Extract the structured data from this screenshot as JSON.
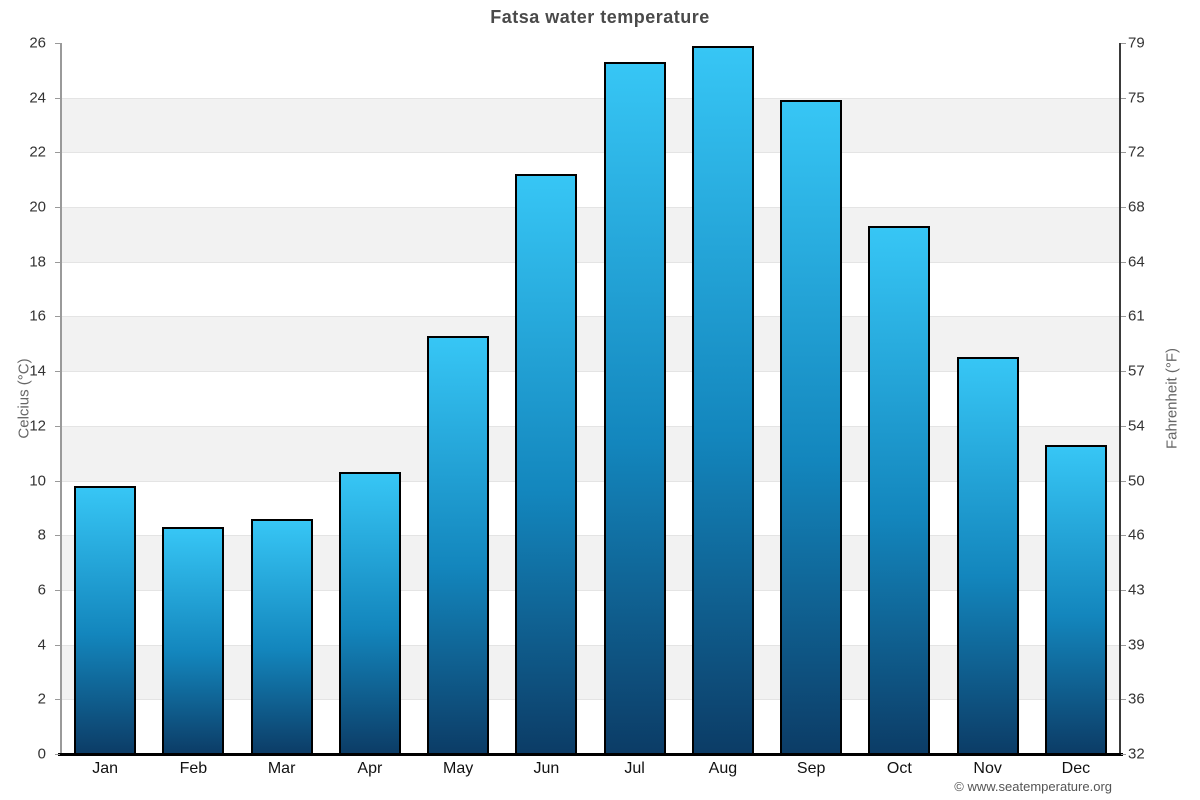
{
  "chart_data": {
    "type": "bar",
    "title": "Fatsa water temperature",
    "categories": [
      "Jan",
      "Feb",
      "Mar",
      "Apr",
      "May",
      "Jun",
      "Jul",
      "Aug",
      "Sep",
      "Oct",
      "Nov",
      "Dec"
    ],
    "values": [
      9.8,
      8.3,
      8.6,
      10.3,
      15.3,
      21.2,
      25.3,
      25.9,
      23.9,
      19.3,
      14.5,
      11.3
    ],
    "xlabel": "",
    "ylabel_left": "Celcius (°C)",
    "ylabel_right": "Fahrenheit (°F)",
    "ylim": [
      0,
      26
    ],
    "y_ticks": [
      {
        "c": "26",
        "f": "79"
      },
      {
        "c": "24",
        "f": "75"
      },
      {
        "c": "22",
        "f": "72"
      },
      {
        "c": "20",
        "f": "68"
      },
      {
        "c": "18",
        "f": "64"
      },
      {
        "c": "16",
        "f": "61"
      },
      {
        "c": "14",
        "f": "57"
      },
      {
        "c": "12",
        "f": "54"
      },
      {
        "c": "10",
        "f": "50"
      },
      {
        "c": "8",
        "f": "46"
      },
      {
        "c": "6",
        "f": "43"
      },
      {
        "c": "4",
        "f": "39"
      },
      {
        "c": "2",
        "f": "36"
      },
      {
        "c": "0",
        "f": "32"
      }
    ],
    "layout": {
      "grid": "alternating-horizontal-bands",
      "gray_band_upper_values": [
        24,
        20,
        16,
        12,
        8,
        4
      ],
      "legend": "none"
    },
    "colors": {
      "bar_gradient_top": "#37c6f5",
      "bar_gradient_bottom": "#0c3c66",
      "bar_border": "#000000",
      "band_fill": "#f2f2f2",
      "gridline": "#e4e4e4",
      "title_text": "#4a4a4a",
      "axis_title_text": "#666666",
      "tick_text": "#333333",
      "bottom_axis": "#000000"
    }
  },
  "footer": {
    "credit": "© www.seatemperature.org"
  }
}
